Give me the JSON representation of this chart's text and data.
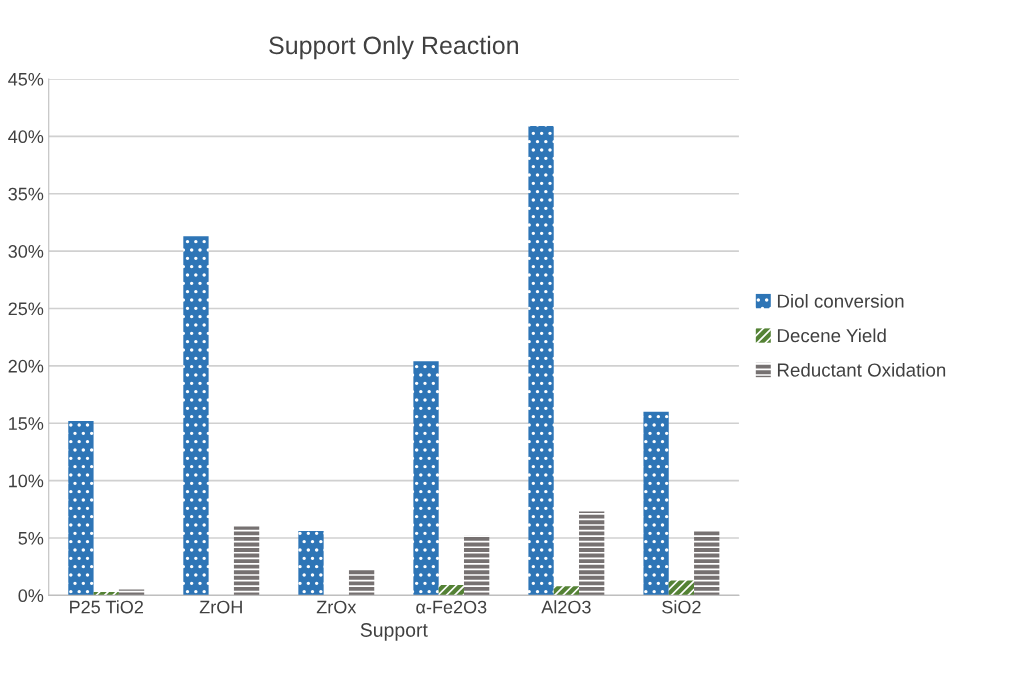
{
  "chart_data": {
    "type": "bar",
    "title": "Support Only Reaction",
    "xlabel": "Support",
    "categories": [
      "P25 TiO2",
      "ZrOH",
      "ZrOx",
      "α-Fe2O3",
      "Al2O3",
      "SiO2"
    ],
    "series": [
      {
        "name": "Diol conversion",
        "color": "#2e75b6",
        "values": [
          15.2,
          31.3,
          5.6,
          20.4,
          40.9,
          16.0
        ]
      },
      {
        "name": "Decene Yield",
        "color": "#548235",
        "values": [
          0.3,
          0,
          0,
          0.9,
          0.8,
          1.3
        ]
      },
      {
        "name": "Reductant Oxidation",
        "color": "#767171",
        "values": [
          0.5,
          6.0,
          2.2,
          5.2,
          7.3,
          5.7
        ]
      }
    ],
    "ylim": [
      0,
      45
    ],
    "yticks": [
      {
        "value": 0,
        "label": "0%"
      },
      {
        "value": 5,
        "label": "5%"
      },
      {
        "value": 10,
        "label": "10%"
      },
      {
        "value": 15,
        "label": "15%"
      },
      {
        "value": 20,
        "label": "20%"
      },
      {
        "value": 25,
        "label": "25%"
      },
      {
        "value": 30,
        "label": "30%"
      },
      {
        "value": 35,
        "label": "35%"
      },
      {
        "value": 40,
        "label": "40%"
      },
      {
        "value": 45,
        "label": "45%"
      }
    ],
    "grid": "y",
    "legend": "right"
  }
}
